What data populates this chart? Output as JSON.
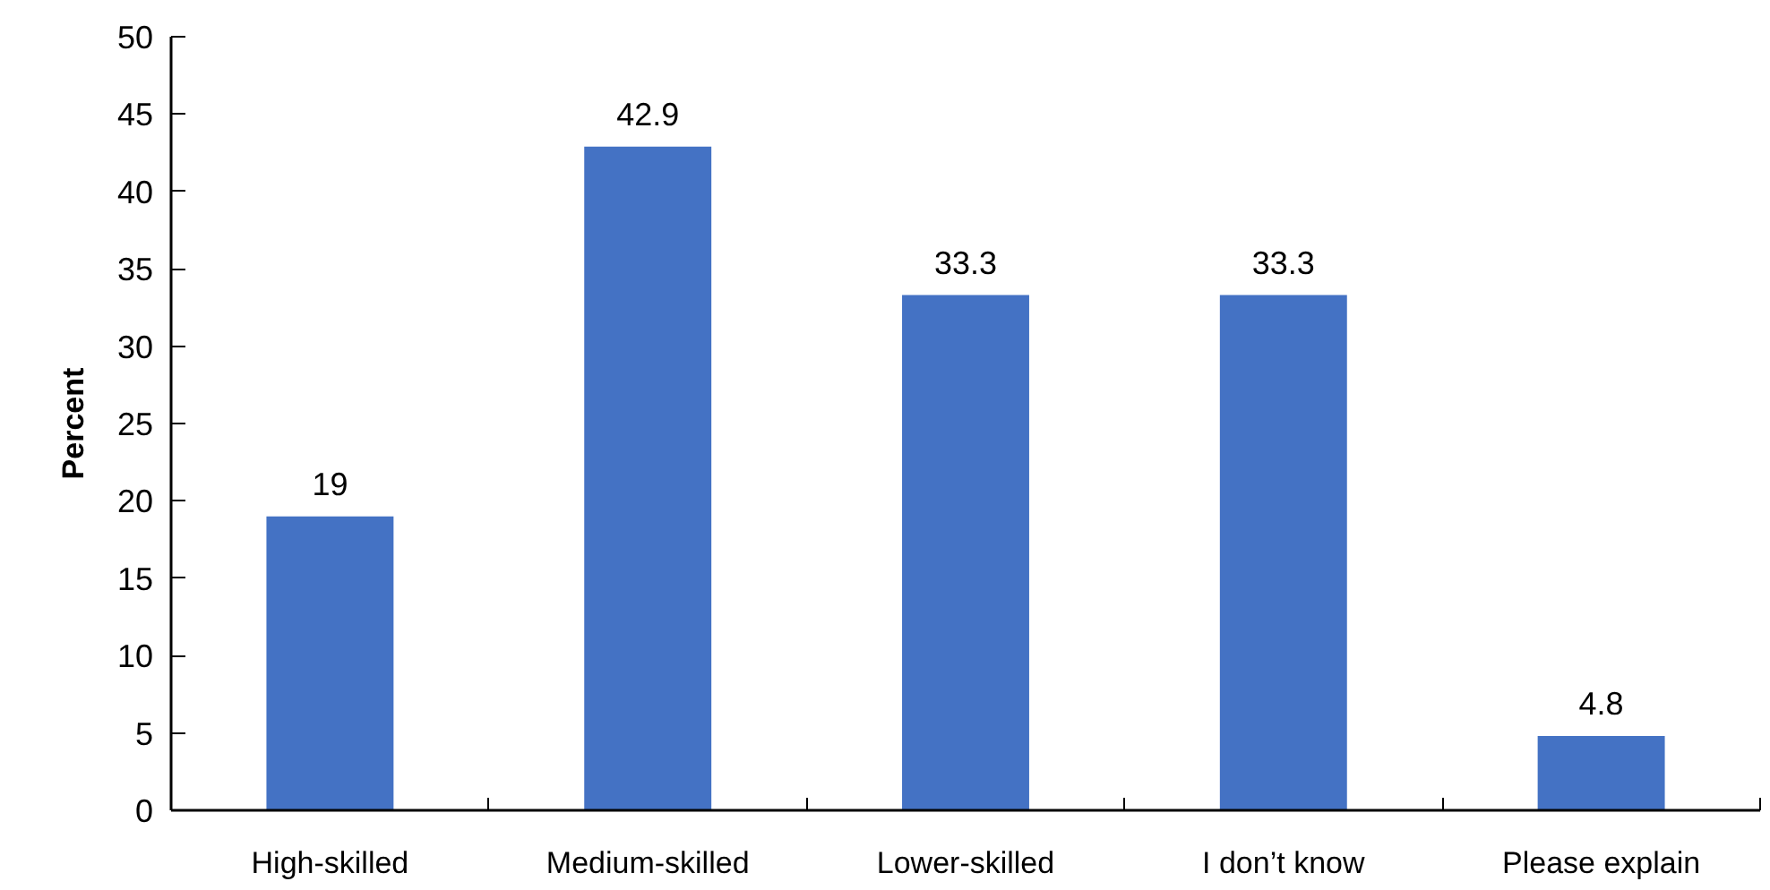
{
  "chart_data": {
    "type": "bar",
    "ylabel": "Percent",
    "categories": [
      "High-skilled",
      "Medium-skilled",
      "Lower-skilled",
      "I don’t know",
      "Please explain"
    ],
    "values": [
      19,
      42.9,
      33.3,
      33.3,
      4.8
    ],
    "color": "#4472c4",
    "ylim": [
      0,
      50
    ],
    "yticks": [
      0,
      5,
      10,
      15,
      20,
      25,
      30,
      35,
      40,
      45,
      50
    ],
    "grid": false,
    "data_labels": true
  }
}
